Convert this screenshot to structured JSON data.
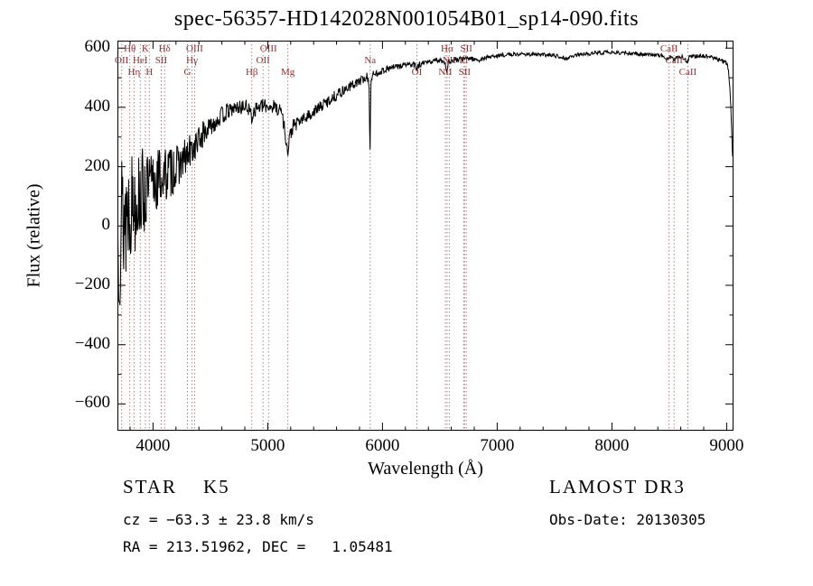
{
  "title": "spec-56357-HD142028N001054B01_sp14-090.fits",
  "axes": {
    "xlabel": "Wavelength (Å)",
    "ylabel": "Flux (relative)",
    "x_ticks": [
      {
        "v": 4000,
        "label": "4000"
      },
      {
        "v": 5000,
        "label": "5000"
      },
      {
        "v": 6000,
        "label": "6000"
      },
      {
        "v": 7000,
        "label": "7000"
      },
      {
        "v": 8000,
        "label": "8000"
      },
      {
        "v": 9000,
        "label": "9000"
      }
    ],
    "y_ticks": [
      {
        "v": 600,
        "label": "600"
      },
      {
        "v": 400,
        "label": "400"
      },
      {
        "v": 200,
        "label": "200"
      },
      {
        "v": 0,
        "label": "0"
      },
      {
        "v": -200,
        "label": "−200"
      },
      {
        "v": -400,
        "label": "−400"
      },
      {
        "v": -600,
        "label": "−600"
      }
    ]
  },
  "chart_data": {
    "type": "line",
    "title": "spec-56357-HD142028N001054B01_sp14-090.fits",
    "xlabel": "Wavelength (Å)",
    "ylabel": "Flux (relative)",
    "xlim": [
      3690,
      9060
    ],
    "ylim": [
      -690,
      625
    ],
    "data_range": [
      3692,
      9052
    ],
    "sample_step": 4,
    "seed": 13,
    "line_color": "#000000",
    "frame_color": "#000000",
    "marker_line_color": "#cc7777",
    "marker_label_color": "#8b3030",
    "anchors": [
      [
        3690,
        -30
      ],
      [
        3720,
        10
      ],
      [
        3750,
        40
      ],
      [
        3800,
        75
      ],
      [
        3850,
        95
      ],
      [
        3900,
        110
      ],
      [
        3950,
        125
      ],
      [
        4000,
        145
      ],
      [
        4050,
        160
      ],
      [
        4100,
        170
      ],
      [
        4150,
        185
      ],
      [
        4200,
        200
      ],
      [
        4250,
        215
      ],
      [
        4300,
        235
      ],
      [
        4350,
        260
      ],
      [
        4400,
        290
      ],
      [
        4450,
        315
      ],
      [
        4500,
        335
      ],
      [
        4550,
        355
      ],
      [
        4600,
        372
      ],
      [
        4650,
        385
      ],
      [
        4700,
        395
      ],
      [
        4750,
        400
      ],
      [
        4820,
        402
      ],
      [
        4855,
        380
      ],
      [
        4861,
        350
      ],
      [
        4868,
        382
      ],
      [
        4900,
        398
      ],
      [
        4950,
        403
      ],
      [
        5000,
        405
      ],
      [
        5060,
        402
      ],
      [
        5120,
        390
      ],
      [
        5160,
        295
      ],
      [
        5175,
        235
      ],
      [
        5190,
        300
      ],
      [
        5220,
        335
      ],
      [
        5270,
        352
      ],
      [
        5330,
        365
      ],
      [
        5400,
        385
      ],
      [
        5470,
        405
      ],
      [
        5540,
        425
      ],
      [
        5610,
        445
      ],
      [
        5680,
        462
      ],
      [
        5750,
        478
      ],
      [
        5820,
        492
      ],
      [
        5865,
        502
      ],
      [
        5883,
        490
      ],
      [
        5891,
        230
      ],
      [
        5899,
        490
      ],
      [
        5920,
        508
      ],
      [
        5980,
        520
      ],
      [
        6040,
        530
      ],
      [
        6100,
        535
      ],
      [
        6160,
        540
      ],
      [
        6220,
        545
      ],
      [
        6280,
        542
      ],
      [
        6300,
        530
      ],
      [
        6320,
        543
      ],
      [
        6380,
        550
      ],
      [
        6440,
        556
      ],
      [
        6500,
        560
      ],
      [
        6540,
        556
      ],
      [
        6562,
        520
      ],
      [
        6580,
        556
      ],
      [
        6640,
        560
      ],
      [
        6700,
        563
      ],
      [
        6760,
        566
      ],
      [
        6860,
        558
      ],
      [
        6880,
        566
      ],
      [
        6960,
        572
      ],
      [
        7050,
        576
      ],
      [
        7150,
        579
      ],
      [
        7250,
        580
      ],
      [
        7350,
        578
      ],
      [
        7450,
        576
      ],
      [
        7550,
        572
      ],
      [
        7605,
        564
      ],
      [
        7660,
        574
      ],
      [
        7760,
        580
      ],
      [
        7860,
        584
      ],
      [
        7960,
        585
      ],
      [
        8060,
        584
      ],
      [
        8160,
        582
      ],
      [
        8260,
        580
      ],
      [
        8360,
        578
      ],
      [
        8440,
        575
      ],
      [
        8495,
        560
      ],
      [
        8510,
        572
      ],
      [
        8540,
        558
      ],
      [
        8555,
        570
      ],
      [
        8610,
        572
      ],
      [
        8660,
        552
      ],
      [
        8675,
        570
      ],
      [
        8740,
        573
      ],
      [
        8800,
        574
      ],
      [
        8860,
        570
      ],
      [
        8920,
        563
      ],
      [
        8960,
        558
      ],
      [
        9000,
        548
      ],
      [
        9015,
        530
      ],
      [
        9030,
        460
      ],
      [
        9042,
        340
      ],
      [
        9052,
        230
      ]
    ],
    "noise_segments": [
      [
        3690,
        3770,
        270
      ],
      [
        3770,
        3850,
        185
      ],
      [
        3850,
        3950,
        150
      ],
      [
        3950,
        4060,
        115
      ],
      [
        4060,
        4200,
        92
      ],
      [
        4200,
        4330,
        68
      ],
      [
        4330,
        4480,
        48
      ],
      [
        4480,
        4650,
        32
      ],
      [
        4650,
        5150,
        24
      ],
      [
        5150,
        5250,
        26
      ],
      [
        5250,
        5650,
        20
      ],
      [
        5650,
        5950,
        16
      ],
      [
        5950,
        6350,
        11
      ],
      [
        6350,
        6800,
        9
      ],
      [
        6800,
        9060,
        6.5
      ]
    ],
    "line_markers": [
      {
        "label": "Hθ",
        "wavelength": 3798,
        "row": 1
      },
      {
        "label": "K",
        "wavelength": 3933,
        "row": 1
      },
      {
        "label": "Hδ",
        "wavelength": 4101,
        "row": 1
      },
      {
        "label": "OIII",
        "wavelength": 4363,
        "row": 1
      },
      {
        "label": "OIII",
        "wavelength": 5007,
        "row": 1
      },
      {
        "label": "Hα",
        "wavelength": 6563,
        "row": 1
      },
      {
        "label": "SII",
        "wavelength": 6731,
        "row": 1
      },
      {
        "label": "CaII",
        "wavelength": 8498,
        "row": 1
      },
      {
        "label": "OII",
        "wavelength": 3727,
        "row": 2
      },
      {
        "label": "HeI",
        "wavelength": 3889,
        "row": 2
      },
      {
        "label": "SII",
        "wavelength": 4072,
        "row": 2
      },
      {
        "label": "Hγ",
        "wavelength": 4340,
        "row": 2
      },
      {
        "label": "OII",
        "wavelength": 4959,
        "row": 2
      },
      {
        "label": "Na",
        "wavelength": 5893,
        "row": 2
      },
      {
        "label": "NII",
        "wavelength": 6583,
        "row": 2
      },
      {
        "label": "Li",
        "wavelength": 6708,
        "row": 2
      },
      {
        "label": "CaII",
        "wavelength": 8542,
        "row": 2
      },
      {
        "label": "Hη",
        "wavelength": 3835,
        "row": 3
      },
      {
        "label": "H",
        "wavelength": 3968,
        "row": 3
      },
      {
        "label": "G",
        "wavelength": 4300,
        "row": 3
      },
      {
        "label": "Hβ",
        "wavelength": 4861,
        "row": 3
      },
      {
        "label": "Mg",
        "wavelength": 5175,
        "row": 3
      },
      {
        "label": "OI",
        "wavelength": 6300,
        "row": 3
      },
      {
        "label": "NII",
        "wavelength": 6548,
        "row": 3
      },
      {
        "label": "SII",
        "wavelength": 6716,
        "row": 3
      },
      {
        "label": "CaII",
        "wavelength": 8662,
        "row": 3
      }
    ]
  },
  "footer": {
    "class_label": "STAR    K5",
    "cz": "cz = −63.3 ± 23.8 km/s",
    "ra_dec": "RA = 213.51962, DEC =   1.05481",
    "survey": "LAMOST DR3",
    "obs_date": "Obs-Date: 20130305"
  }
}
